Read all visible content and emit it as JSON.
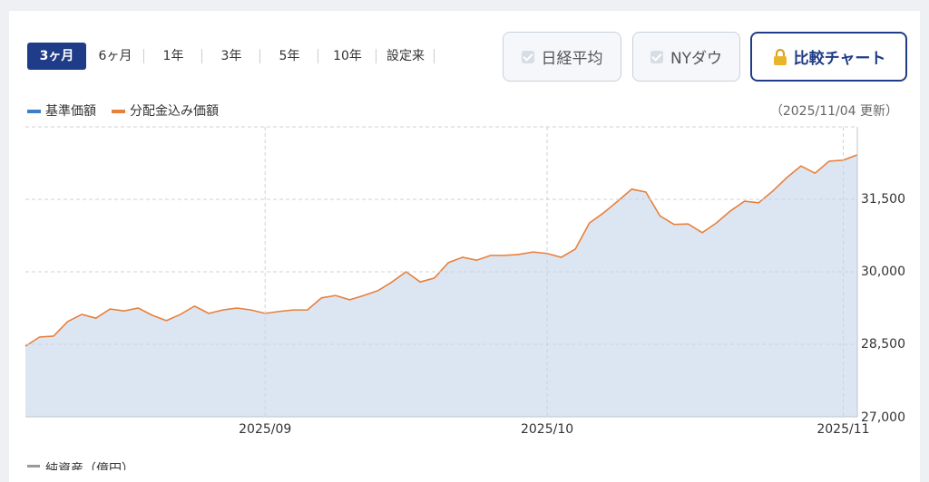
{
  "period_tabs": [
    "3ヶ月",
    "6ヶ月",
    "1年",
    "3年",
    "5年",
    "10年",
    "設定来"
  ],
  "compare_buttons": [
    "日経平均",
    "NYダウ"
  ],
  "compare_chart_button": "比較チャート",
  "updated": "（2025/11/04 更新）",
  "footer_legend": "純資産（億円）",
  "chart_data": {
    "type": "line",
    "categories": [
      null,
      null,
      null,
      null,
      null,
      null,
      null,
      null,
      null,
      null,
      null,
      null,
      null,
      null,
      null,
      null,
      null,
      "2025/09",
      null,
      null,
      null,
      null,
      null,
      null,
      null,
      null,
      null,
      null,
      null,
      null,
      null,
      null,
      null,
      null,
      null,
      null,
      null,
      "2025/10",
      null,
      null,
      null,
      null,
      null,
      null,
      null,
      null,
      null,
      null,
      null,
      null,
      null,
      null,
      null,
      null,
      null,
      null,
      null,
      null,
      "2025/11",
      null
    ],
    "series": [
      {
        "name": "基準価額",
        "color": "#3d7fc4",
        "fill": "#dce6f3",
        "style": "area",
        "values": [
          28460,
          28650,
          28670,
          28970,
          29120,
          29040,
          29230,
          29190,
          29250,
          29100,
          28990,
          29120,
          29290,
          29140,
          29210,
          29250,
          29210,
          29140,
          29180,
          29210,
          29210,
          29460,
          29510,
          29420,
          29510,
          29610,
          29790,
          30000,
          29790,
          29870,
          30190,
          30300,
          30240,
          30340,
          30340,
          30360,
          30410,
          30380,
          30300,
          30470,
          31010,
          31220,
          31460,
          31710,
          31650,
          31160,
          30980,
          30990,
          30810,
          31010,
          31260,
          31460,
          31430,
          31670,
          31950,
          32190,
          32040,
          32290,
          32310,
          32420
        ]
      },
      {
        "name": "分配金込み価額",
        "color": "#e8803a",
        "style": "line",
        "values": [
          28460,
          28650,
          28670,
          28970,
          29120,
          29040,
          29230,
          29190,
          29250,
          29100,
          28990,
          29120,
          29290,
          29140,
          29210,
          29250,
          29210,
          29140,
          29180,
          29210,
          29210,
          29460,
          29510,
          29420,
          29510,
          29610,
          29790,
          30000,
          29790,
          29870,
          30190,
          30300,
          30240,
          30340,
          30340,
          30360,
          30410,
          30380,
          30300,
          30470,
          31010,
          31220,
          31460,
          31710,
          31650,
          31160,
          30980,
          30990,
          30810,
          31010,
          31260,
          31460,
          31430,
          31670,
          31950,
          32190,
          32040,
          32290,
          32310,
          32420
        ]
      }
    ],
    "ylim": [
      27000,
      33000
    ],
    "yticks": [
      {
        "value": 27000,
        "label": "27,000"
      },
      {
        "value": 28500,
        "label": "28,500"
      },
      {
        "value": 30000,
        "label": "30,000"
      },
      {
        "value": 31500,
        "label": "31,500"
      }
    ],
    "grid": true
  }
}
